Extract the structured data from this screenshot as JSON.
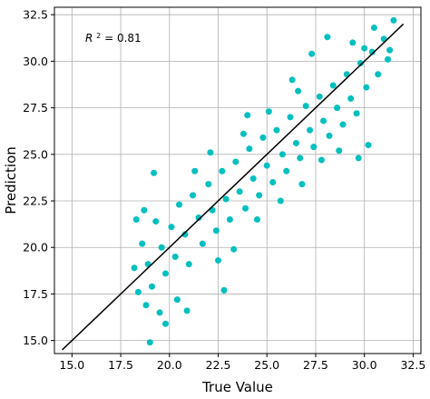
{
  "chart_data": {
    "type": "scatter",
    "title": "",
    "xlabel": "True Value",
    "ylabel": "Prediction",
    "xlim": [
      14.1,
      32.9
    ],
    "ylim": [
      14.3,
      32.9
    ],
    "x_ticks": [
      15.0,
      17.5,
      20.0,
      22.5,
      25.0,
      27.5,
      30.0,
      32.5
    ],
    "x_tick_labels": [
      "15.0",
      "17.5",
      "20.0",
      "22.5",
      "25.0",
      "27.5",
      "30.0",
      "32.5"
    ],
    "y_ticks": [
      15.0,
      17.5,
      20.0,
      22.5,
      25.0,
      27.5,
      30.0,
      32.5
    ],
    "y_tick_labels": [
      "15.0",
      "17.5",
      "20.0",
      "22.5",
      "25.0",
      "27.5",
      "30.0",
      "32.5"
    ],
    "grid": true,
    "annotation": {
      "prefix": "R",
      "superscript": "2",
      "suffix": " = 0.81"
    },
    "point_color": "#00bfbf",
    "line_color": "#000000",
    "reference_line": {
      "x": [
        14.5,
        32.0
      ],
      "y": [
        14.5,
        32.0
      ]
    },
    "series": [
      {
        "values": [
          [
            18.2,
            18.9
          ],
          [
            18.4,
            17.6
          ],
          [
            18.6,
            20.2
          ],
          [
            18.9,
            19.1
          ],
          [
            19.1,
            17.9
          ],
          [
            19.3,
            21.4
          ],
          [
            19.6,
            20.0
          ],
          [
            19.8,
            18.6
          ],
          [
            20.1,
            21.1
          ],
          [
            20.3,
            19.5
          ],
          [
            20.5,
            22.3
          ],
          [
            20.8,
            20.7
          ],
          [
            21.0,
            19.1
          ],
          [
            21.2,
            22.8
          ],
          [
            21.5,
            21.6
          ],
          [
            21.7,
            20.2
          ],
          [
            22.0,
            23.4
          ],
          [
            22.2,
            22.0
          ],
          [
            22.4,
            20.9
          ],
          [
            22.7,
            24.1
          ],
          [
            22.9,
            22.6
          ],
          [
            23.1,
            21.5
          ],
          [
            23.4,
            24.6
          ],
          [
            23.6,
            23.0
          ],
          [
            23.9,
            22.1
          ],
          [
            24.1,
            25.3
          ],
          [
            24.3,
            23.7
          ],
          [
            24.6,
            22.8
          ],
          [
            24.8,
            25.9
          ],
          [
            25.0,
            24.4
          ],
          [
            25.3,
            23.5
          ],
          [
            25.5,
            26.3
          ],
          [
            25.8,
            25.0
          ],
          [
            26.0,
            24.1
          ],
          [
            26.2,
            27.0
          ],
          [
            26.5,
            25.6
          ],
          [
            26.7,
            24.8
          ],
          [
            27.0,
            27.6
          ],
          [
            27.2,
            26.3
          ],
          [
            27.4,
            25.4
          ],
          [
            27.7,
            28.1
          ],
          [
            27.9,
            26.8
          ],
          [
            28.2,
            26.0
          ],
          [
            28.4,
            28.7
          ],
          [
            28.6,
            27.5
          ],
          [
            28.9,
            26.6
          ],
          [
            29.1,
            29.3
          ],
          [
            29.3,
            28.0
          ],
          [
            29.6,
            27.2
          ],
          [
            29.8,
            29.9
          ],
          [
            30.1,
            28.6
          ],
          [
            30.4,
            30.5
          ],
          [
            30.7,
            29.3
          ],
          [
            31.0,
            31.2
          ],
          [
            31.3,
            30.6
          ],
          [
            31.5,
            32.2
          ],
          [
            18.3,
            21.5
          ],
          [
            18.7,
            22.0
          ],
          [
            19.2,
            24.0
          ],
          [
            19.5,
            16.5
          ],
          [
            19.0,
            14.9
          ],
          [
            19.8,
            15.9
          ],
          [
            20.4,
            17.2
          ],
          [
            18.8,
            16.9
          ],
          [
            21.3,
            24.1
          ],
          [
            22.1,
            25.1
          ],
          [
            22.5,
            19.3
          ],
          [
            23.3,
            19.9
          ],
          [
            23.8,
            26.1
          ],
          [
            24.5,
            21.5
          ],
          [
            25.1,
            27.3
          ],
          [
            25.7,
            22.5
          ],
          [
            26.3,
            29.0
          ],
          [
            26.8,
            23.4
          ],
          [
            27.3,
            30.4
          ],
          [
            27.8,
            24.7
          ],
          [
            28.1,
            31.3
          ],
          [
            28.7,
            25.2
          ],
          [
            29.4,
            31.0
          ],
          [
            29.7,
            24.8
          ],
          [
            30.2,
            25.5
          ],
          [
            30.5,
            31.8
          ],
          [
            31.2,
            30.1
          ],
          [
            30.0,
            30.7
          ],
          [
            22.8,
            17.7
          ],
          [
            20.9,
            16.6
          ],
          [
            24.0,
            27.1
          ],
          [
            26.6,
            28.4
          ]
        ]
      }
    ]
  }
}
